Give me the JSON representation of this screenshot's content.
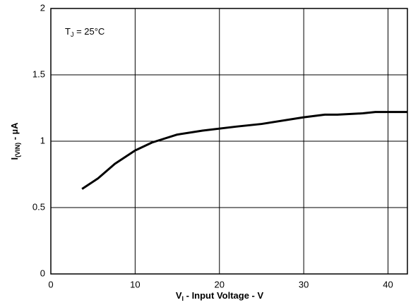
{
  "chart_data": {
    "type": "line",
    "annotation": {
      "main": "T",
      "sub": "J",
      "rest": " = 25°C"
    },
    "xlabel": {
      "main": "V",
      "sub": "I",
      "rest": " - Input Voltage - V"
    },
    "ylabel": {
      "main": "I",
      "sub": "(VIN)",
      "rest": " - µA"
    },
    "x": [
      3.7,
      5.6,
      7.6,
      10,
      12,
      15,
      18,
      22,
      25,
      30,
      32.5,
      34,
      37,
      38.5,
      42.3
    ],
    "series": [
      {
        "name": "IVIN",
        "color": "#000000",
        "values": [
          0.64,
          0.72,
          0.83,
          0.93,
          0.99,
          1.05,
          1.08,
          1.11,
          1.13,
          1.18,
          1.2,
          1.2,
          1.21,
          1.22,
          1.22
        ]
      }
    ],
    "xlim": [
      0,
      42.3
    ],
    "ylim": [
      0,
      2
    ],
    "xticks": [
      0,
      10,
      20,
      30,
      40
    ],
    "yticks": [
      0,
      0.5,
      1,
      1.5,
      2
    ],
    "grid": true
  }
}
